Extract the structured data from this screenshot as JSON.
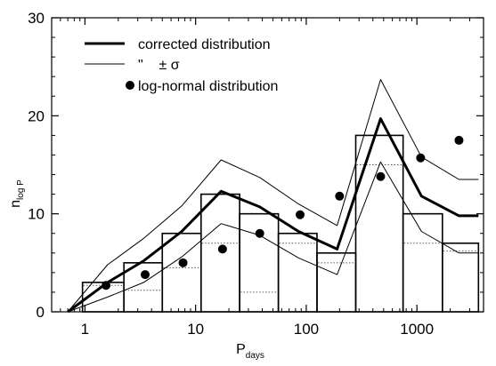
{
  "chart_data": {
    "type": "bar",
    "xscale": "log",
    "xlabel": "P",
    "xlabel_sub": "days",
    "ylabel": "n",
    "ylabel_sub": "log P",
    "xlim": [
      0.5,
      4000
    ],
    "ylim": [
      0,
      30
    ],
    "xticks": [
      1,
      10,
      100,
      1000
    ],
    "xtick_labels": [
      "1",
      "10",
      "100",
      "1000"
    ],
    "yticks": [
      0,
      10,
      20,
      30
    ],
    "ytick_labels": [
      "0",
      "10",
      "20",
      "30"
    ],
    "grid": false,
    "histogram": {
      "bin_edges": [
        0.95,
        2.25,
        5.0,
        11.2,
        25.0,
        56.0,
        125.0,
        280.0,
        750.0,
        1700.0,
        3600.0
      ],
      "counts": [
        3,
        5,
        8,
        12,
        10,
        8,
        6,
        18,
        10,
        7
      ],
      "dotted_levels": [
        2.7,
        2.2,
        4.5,
        7.0,
        2.0,
        7.0,
        5.0,
        15.0,
        7.0,
        6.2
      ]
    },
    "series": [
      {
        "name": "corrected distribution",
        "style": "thick-line",
        "x": [
          0.7,
          1.6,
          3.4,
          7.5,
          17,
          38,
          85,
          190,
          470,
          1100,
          2400,
          3600
        ],
        "y": [
          0,
          3,
          5.2,
          8.2,
          12.3,
          10.7,
          8.2,
          6.4,
          19.7,
          11.8,
          9.8,
          9.8
        ]
      },
      {
        "name": "\"  ± σ",
        "style": "thin-line",
        "x": [
          0.7,
          1.6,
          3.4,
          7.5,
          17,
          38,
          85,
          190,
          470,
          1100,
          2400,
          3600
        ],
        "y": [
          0,
          4.8,
          7.5,
          10.8,
          15.5,
          13.7,
          11.0,
          8.8,
          23.7,
          15.8,
          13.5,
          13.5
        ]
      },
      {
        "name": "\"  ± σ (lower)",
        "style": "thin-line",
        "x": [
          0.7,
          1.6,
          3.4,
          7.5,
          17,
          38,
          85,
          190,
          470,
          1100,
          2400,
          3600
        ],
        "y": [
          0,
          1.5,
          3.0,
          5.6,
          9.0,
          7.8,
          5.5,
          3.8,
          15.3,
          8.2,
          6.0,
          6.0
        ]
      },
      {
        "name": "log-normal distribution",
        "style": "points",
        "x": [
          1.55,
          3.5,
          7.7,
          17.5,
          38,
          88,
          200,
          470,
          1080,
          2400
        ],
        "y": [
          2.7,
          3.8,
          5.0,
          6.4,
          8.0,
          9.9,
          11.8,
          13.8,
          15.7,
          17.5
        ]
      }
    ],
    "legend": {
      "position": "top-left",
      "entries": [
        {
          "label": "corrected distribution",
          "style": "thick-line"
        },
        {
          "label": "\"    ± σ",
          "style": "thin-line"
        },
        {
          "label": "log-normal distribution",
          "style": "points"
        }
      ]
    }
  }
}
